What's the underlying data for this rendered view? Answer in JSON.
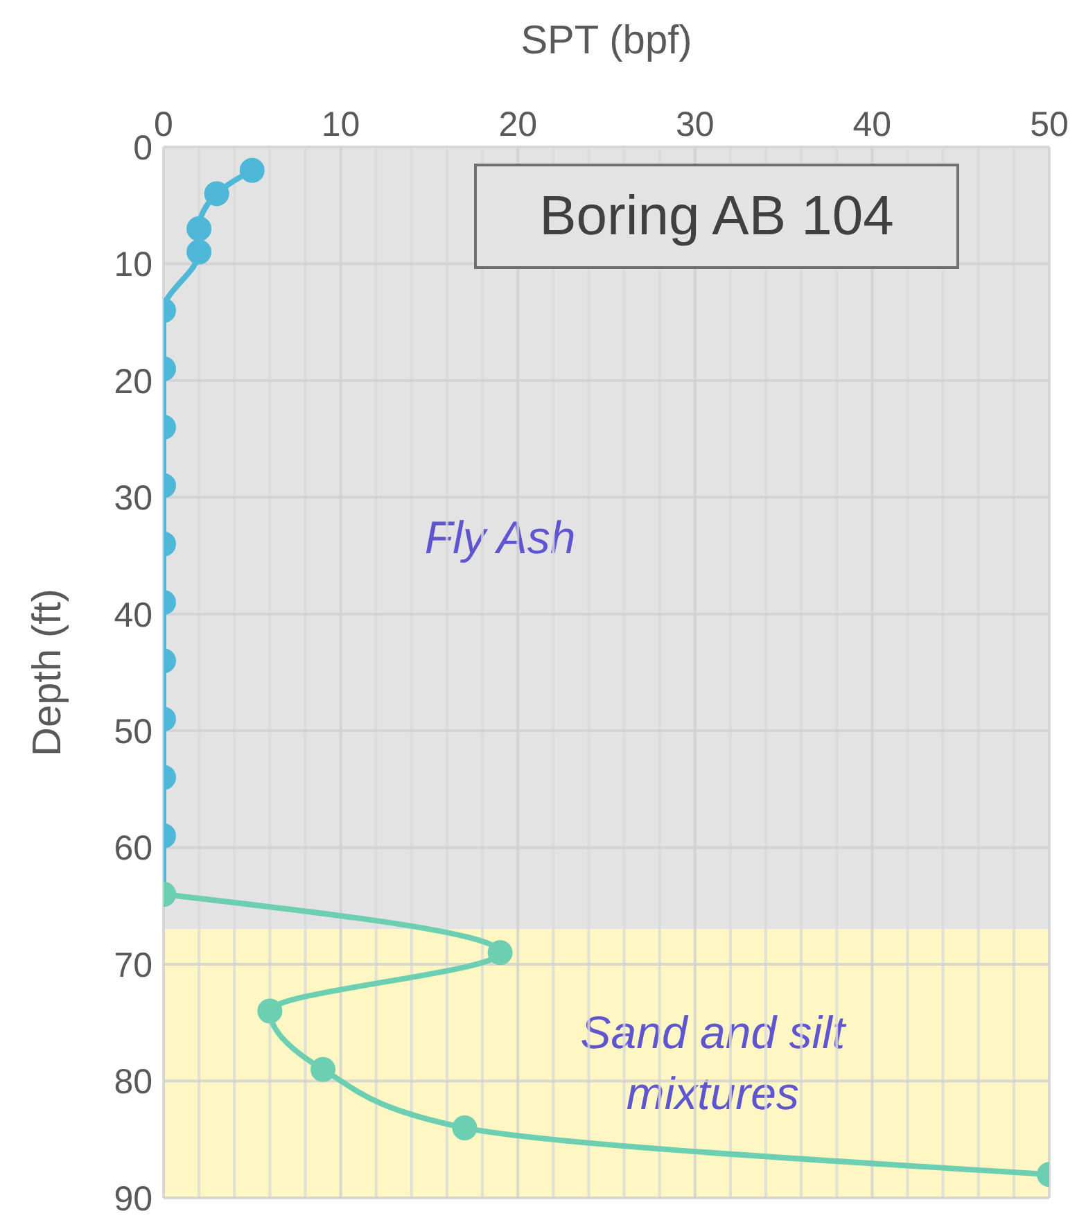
{
  "chart_data": {
    "type": "line",
    "title": "Boring AB 104",
    "xlabel": "SPT (bpf)",
    "ylabel": "Depth (ft)",
    "series": [
      {
        "color": "#4fb8d8",
        "x": [
          5,
          3,
          2,
          2,
          0,
          0,
          0,
          0,
          0,
          0,
          0,
          0,
          0,
          0,
          0
        ],
        "values": [
          2,
          4,
          7,
          9,
          14,
          19,
          24,
          29,
          34,
          39,
          44,
          49,
          54,
          59,
          64
        ]
      },
      {
        "color": "#6dcfb2",
        "x": [
          0,
          19,
          6,
          9,
          17,
          50
        ],
        "values": [
          64,
          69,
          74,
          79,
          84,
          88
        ]
      }
    ],
    "legend": false,
    "xlim": [
      0,
      50
    ],
    "xticks": [
      0,
      {
        "value": 2,
        "label": null
      },
      {
        "value": 4,
        "label": null
      },
      {
        "value": 6,
        "label": null
      },
      {
        "value": 8,
        "label": null
      },
      10,
      {
        "value": 12,
        "label": null
      },
      {
        "value": 14,
        "label": null
      },
      {
        "value": 16,
        "label": null
      },
      {
        "value": 18,
        "label": null
      },
      20,
      {
        "value": 22,
        "label": null
      },
      {
        "value": 24,
        "label": null
      },
      {
        "value": 26,
        "label": null
      },
      {
        "value": 28,
        "label": null
      },
      30,
      {
        "value": 32,
        "label": null
      },
      {
        "value": 34,
        "label": null
      },
      {
        "value": 36,
        "label": null
      },
      {
        "value": 38,
        "label": null
      },
      40,
      {
        "value": 42,
        "label": null
      },
      {
        "value": 44,
        "label": null
      },
      {
        "value": 46,
        "label": null
      },
      {
        "value": 48,
        "label": null
      },
      50
    ],
    "ylim": [
      90,
      0
    ],
    "yticks": [
      0,
      10,
      20,
      30,
      40,
      50,
      60,
      70,
      80,
      90
    ],
    "bands": [
      {
        "axis": "y",
        "from": 0,
        "to": 67,
        "label": "Fly Ash",
        "color": "#e3e3e3"
      },
      {
        "axis": "y",
        "from": 67,
        "to": 90,
        "label": "Sand and silt mixtures",
        "color": "#fef7c3"
      }
    ],
    "grid": true,
    "marker": "circle",
    "line_style": "solid"
  }
}
